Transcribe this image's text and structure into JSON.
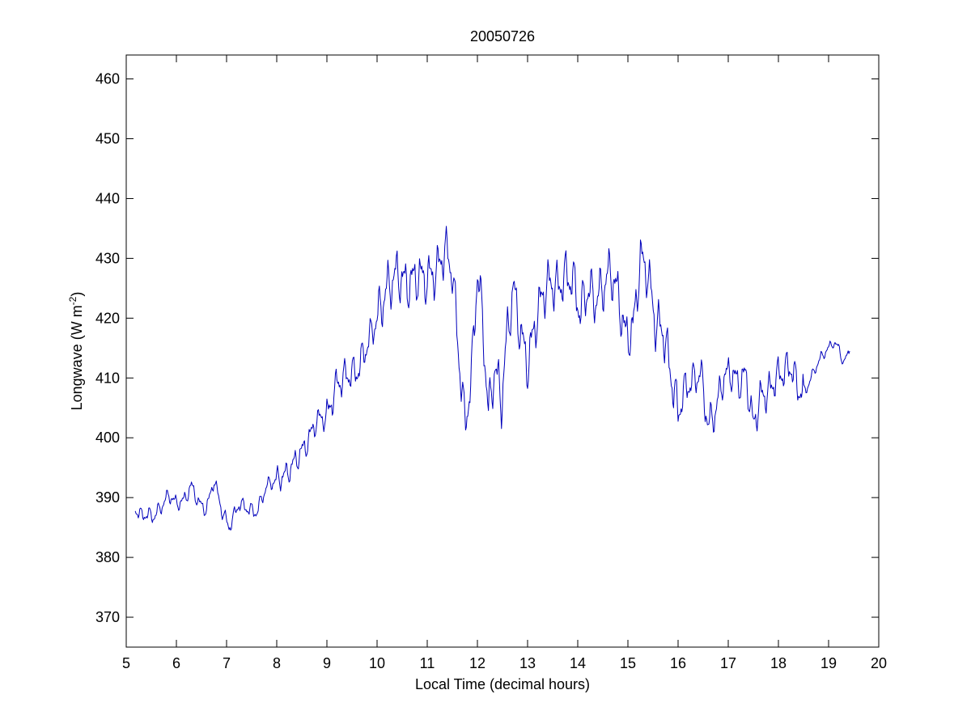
{
  "chart_data": {
    "type": "line",
    "title": "20050726",
    "xlabel": "Local Time (decimal hours)",
    "ylabel": {
      "main": "Longwave (W m",
      "sup": "-2",
      "close": ")"
    },
    "xlim": [
      5,
      20
    ],
    "ylim": [
      365,
      464
    ],
    "xticks": [
      5,
      6,
      7,
      8,
      9,
      10,
      11,
      12,
      13,
      14,
      15,
      16,
      17,
      18,
      19,
      20
    ],
    "yticks": [
      370,
      380,
      390,
      400,
      410,
      420,
      430,
      440,
      450,
      460
    ],
    "grid": false,
    "box": true,
    "series": [
      {
        "color": "#0000bb",
        "points": [
          [
            5.18,
            388
          ],
          [
            5.3,
            387
          ],
          [
            5.42,
            387.2
          ],
          [
            5.55,
            386.8
          ],
          [
            5.7,
            388.5
          ],
          [
            5.85,
            390.5
          ],
          [
            6.0,
            389
          ],
          [
            6.15,
            389.5
          ],
          [
            6.3,
            392
          ],
          [
            6.45,
            389
          ],
          [
            6.6,
            388
          ],
          [
            6.75,
            393
          ],
          [
            6.9,
            388
          ],
          [
            7.05,
            385
          ],
          [
            7.25,
            389
          ],
          [
            7.45,
            388
          ],
          [
            7.6,
            387.5
          ],
          [
            7.8,
            392
          ],
          [
            8.0,
            393
          ],
          [
            8.2,
            394
          ],
          [
            8.4,
            396.5
          ],
          [
            8.6,
            399
          ],
          [
            8.8,
            403
          ],
          [
            9.0,
            403.5
          ],
          [
            9.2,
            409
          ],
          [
            9.4,
            410.5
          ],
          [
            9.6,
            411
          ],
          [
            9.8,
            415.5
          ],
          [
            10.0,
            420
          ],
          [
            10.2,
            425
          ],
          [
            10.4,
            427.5
          ],
          [
            10.6,
            425.5
          ],
          [
            10.8,
            427
          ],
          [
            11.0,
            426.5
          ],
          [
            11.2,
            428
          ],
          [
            11.35,
            431.5
          ],
          [
            11.5,
            428
          ],
          [
            11.62,
            415
          ],
          [
            11.75,
            402
          ],
          [
            11.88,
            410
          ],
          [
            12.0,
            428
          ],
          [
            12.1,
            420
          ],
          [
            12.22,
            404
          ],
          [
            12.35,
            412
          ],
          [
            12.48,
            406
          ],
          [
            12.6,
            418
          ],
          [
            12.72,
            425
          ],
          [
            12.85,
            418
          ],
          [
            13.0,
            412
          ],
          [
            13.15,
            419
          ],
          [
            13.3,
            424
          ],
          [
            13.45,
            426
          ],
          [
            13.6,
            425
          ],
          [
            13.75,
            427
          ],
          [
            13.9,
            426.5
          ],
          [
            14.05,
            421
          ],
          [
            14.2,
            425
          ],
          [
            14.35,
            423
          ],
          [
            14.5,
            425
          ],
          [
            14.65,
            428
          ],
          [
            14.8,
            424
          ],
          [
            14.95,
            417
          ],
          [
            15.1,
            418
          ],
          [
            15.25,
            430
          ],
          [
            15.4,
            427.5
          ],
          [
            15.55,
            419
          ],
          [
            15.7,
            418
          ],
          [
            15.85,
            411
          ],
          [
            16.0,
            404
          ],
          [
            16.15,
            408.5
          ],
          [
            16.3,
            409.5
          ],
          [
            16.45,
            411
          ],
          [
            16.6,
            402
          ],
          [
            16.75,
            404.5
          ],
          [
            16.9,
            410
          ],
          [
            17.05,
            411
          ],
          [
            17.2,
            409
          ],
          [
            17.35,
            410.5
          ],
          [
            17.5,
            402
          ],
          [
            17.65,
            407
          ],
          [
            17.8,
            407.5
          ],
          [
            17.95,
            410
          ],
          [
            18.1,
            411
          ],
          [
            18.25,
            412
          ],
          [
            18.4,
            408
          ],
          [
            18.55,
            408
          ],
          [
            18.7,
            411
          ],
          [
            18.85,
            413.5
          ],
          [
            19.0,
            415
          ],
          [
            19.1,
            416
          ],
          [
            19.2,
            415
          ],
          [
            19.3,
            412.5
          ],
          [
            19.42,
            414.5
          ]
        ]
      }
    ]
  }
}
